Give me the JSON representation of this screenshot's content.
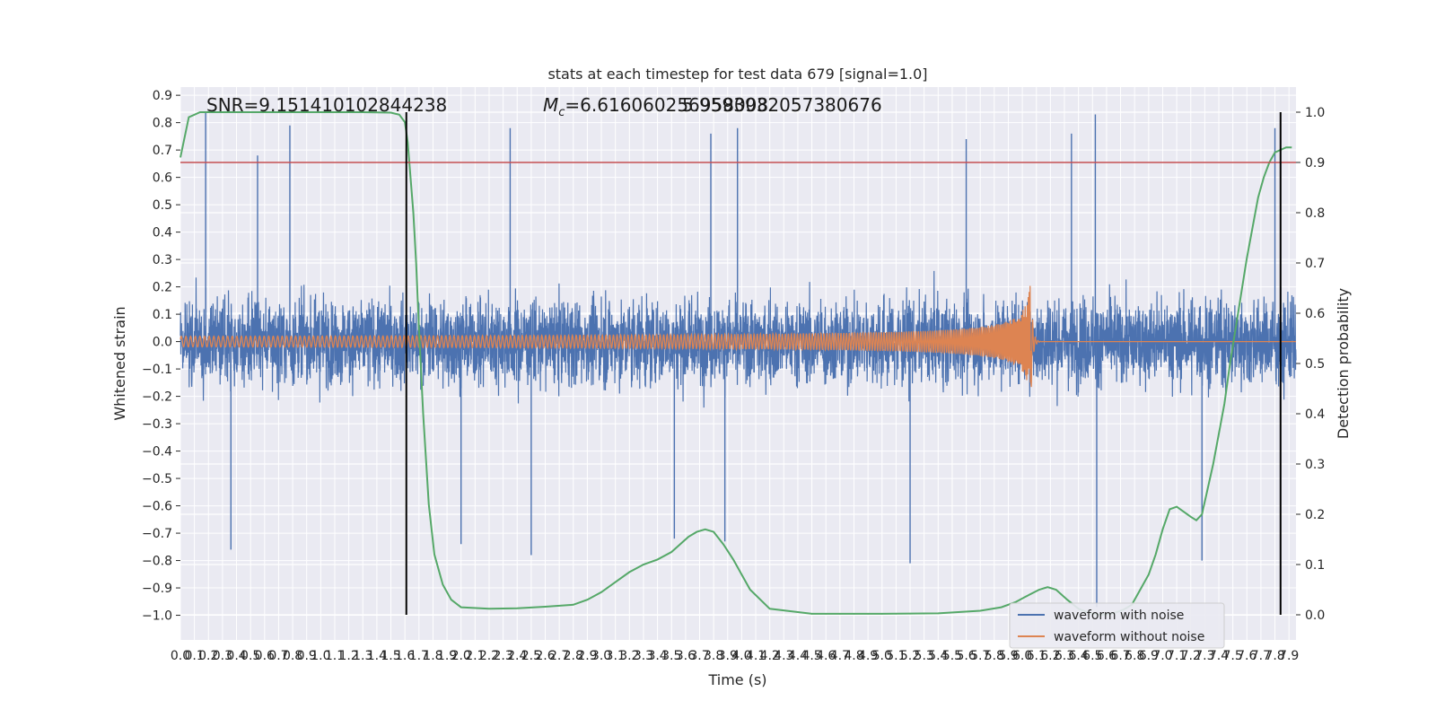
{
  "chart_data": {
    "type": "line",
    "title": "stats at each timestep for test data 679 [signal=1.0]",
    "xlabel": "Time (s)",
    "ylabel_left": "Whitened strain",
    "ylabel_right": "Detection probability",
    "xlim": [
      0.0,
      7.95
    ],
    "ylim_left": [
      -1.09,
      0.93
    ],
    "ylim_right": [
      -0.05,
      1.05
    ],
    "x_ticks": [
      0.0,
      0.1,
      0.2,
      0.3,
      0.4,
      0.5,
      0.6,
      0.7,
      0.8,
      0.9,
      1.0,
      1.1,
      1.2,
      1.3,
      1.4,
      1.5,
      1.6,
      1.7,
      1.8,
      1.9,
      2.0,
      2.1,
      2.2,
      2.3,
      2.4,
      2.5,
      2.6,
      2.7,
      2.8,
      2.9,
      3.0,
      3.1,
      3.2,
      3.3,
      3.4,
      3.5,
      3.6,
      3.7,
      3.8,
      3.9,
      4.0,
      4.1,
      4.2,
      4.3,
      4.4,
      4.5,
      4.6,
      4.7,
      4.8,
      4.9,
      5.0,
      5.1,
      5.2,
      5.3,
      5.4,
      5.5,
      5.6,
      5.7,
      5.8,
      5.9,
      6.0,
      6.1,
      6.2,
      6.3,
      6.4,
      6.5,
      6.6,
      6.7,
      6.8,
      6.9,
      7.0,
      7.1,
      7.2,
      7.3,
      7.4,
      7.5,
      7.6,
      7.7,
      7.8,
      7.9
    ],
    "x_tick_labels": [
      "0.0",
      "0.1",
      "0.2",
      "0.3",
      "0.4",
      "0.5",
      "0.6",
      "0.7",
      "0.8",
      "0.9",
      "1.0",
      "1.1",
      "1.2",
      "1.3",
      "1.4",
      "1.5",
      "1.6",
      "1.7",
      "1.8",
      "1.9",
      "2.0",
      "2.1",
      "2.2",
      "2.3",
      "2.4",
      "2.5",
      "2.6",
      "2.7",
      "2.8",
      "2.9",
      "3.0",
      "3.1",
      "3.2",
      "3.3",
      "3.4",
      "3.5",
      "3.6",
      "3.7",
      "3.8",
      "3.9",
      "4.0",
      "4.1",
      "4.2",
      "4.3",
      "4.4",
      "4.5",
      "4.6",
      "4.7",
      "4.8",
      "4.9",
      "5.0",
      "5.1",
      "5.2",
      "5.3",
      "5.4",
      "5.5",
      "5.6",
      "5.7",
      "5.8",
      "5.9",
      "6.0",
      "6.1",
      "6.2",
      "6.3",
      "6.4",
      "6.5",
      "6.6",
      "6.7",
      "6.8",
      "6.9",
      "7.0",
      "7.1",
      "7.2",
      "7.3",
      "7.4",
      "7.5",
      "7.6",
      "7.7",
      "7.8",
      "7.9"
    ],
    "y_left_ticks": [
      0.9,
      0.8,
      0.7,
      0.6,
      0.5,
      0.4,
      0.3,
      0.2,
      0.1,
      0.0,
      -0.1,
      -0.2,
      -0.3,
      -0.4,
      -0.5,
      -0.6,
      -0.7,
      -0.8,
      -0.9,
      -1.0
    ],
    "y_left_tick_labels": [
      "0.9",
      "0.8",
      "0.7",
      "0.6",
      "0.5",
      "0.4",
      "0.3",
      "0.2",
      "0.1",
      "0.0",
      "−0.1",
      "−0.2",
      "−0.3",
      "−0.4",
      "−0.5",
      "−0.6",
      "−0.7",
      "−0.8",
      "−0.9",
      "−1.0"
    ],
    "y_right_ticks": [
      1.0,
      0.9,
      0.8,
      0.7,
      0.6,
      0.5,
      0.4,
      0.3,
      0.2,
      0.1,
      0.0
    ],
    "y_right_tick_labels": [
      "1.0",
      "0.9",
      "0.8",
      "0.7",
      "0.6",
      "0.5",
      "0.4",
      "0.3",
      "0.2",
      "0.1",
      "0.0"
    ],
    "grid": true,
    "legend_position": "bottom-right",
    "annotations": {
      "snr": "SNR=9.151410102844238",
      "chirp_mass_symbol": "M",
      "chirp_mass_sub": "c",
      "chirp_mass_value": "=6.616060256958008",
      "overlap_value": "5.9593932057380676"
    },
    "threshold": {
      "value": 0.9,
      "axis": "right"
    },
    "vertical_markers": [
      1.61,
      7.84
    ],
    "series": [
      {
        "name": "waveform with noise",
        "axis": "left",
        "kind": "noise",
        "typical_amplitude": 0.32,
        "peaks": [
          {
            "x": 0.18,
            "y": 0.84
          },
          {
            "x": 0.36,
            "y": -0.76
          },
          {
            "x": 0.55,
            "y": 0.68
          },
          {
            "x": 0.78,
            "y": 0.79
          },
          {
            "x": 2.35,
            "y": 0.78
          },
          {
            "x": 3.52,
            "y": -0.72
          },
          {
            "x": 3.78,
            "y": 0.76
          },
          {
            "x": 3.97,
            "y": 0.78
          },
          {
            "x": 3.88,
            "y": -0.73
          },
          {
            "x": 5.2,
            "y": -0.81
          },
          {
            "x": 5.6,
            "y": 0.74
          },
          {
            "x": 6.35,
            "y": 0.76
          },
          {
            "x": 6.52,
            "y": 0.83
          },
          {
            "x": 6.53,
            "y": -0.97
          },
          {
            "x": 7.8,
            "y": 0.78
          },
          {
            "x": 7.28,
            "y": -0.8
          },
          {
            "x": 2.0,
            "y": -0.74
          },
          {
            "x": 2.5,
            "y": -0.78
          }
        ]
      },
      {
        "name": "waveform without noise",
        "axis": "left",
        "kind": "chirp",
        "start_amplitude": 0.01,
        "merger_time": 6.06,
        "merger_amplitude": 0.23,
        "start_frequency": 30
      },
      {
        "name": "detection probability",
        "axis": "right",
        "kind": "line",
        "x": [
          0.0,
          0.06,
          0.14,
          0.3,
          0.6,
          1.0,
          1.3,
          1.5,
          1.56,
          1.6,
          1.62,
          1.64,
          1.66,
          1.68,
          1.7,
          1.73,
          1.77,
          1.81,
          1.87,
          1.93,
          2.0,
          2.2,
          2.4,
          2.6,
          2.8,
          2.9,
          3.0,
          3.1,
          3.2,
          3.3,
          3.4,
          3.5,
          3.56,
          3.62,
          3.68,
          3.74,
          3.8,
          3.87,
          3.94,
          4.0,
          4.06,
          4.2,
          4.5,
          5.0,
          5.4,
          5.7,
          5.85,
          5.95,
          6.05,
          6.12,
          6.18,
          6.24,
          6.32,
          6.4,
          6.48,
          6.56,
          6.64,
          6.72,
          6.78,
          6.84,
          6.9,
          6.95,
          7.0,
          7.05,
          7.1,
          7.15,
          7.2,
          7.24,
          7.28,
          7.32,
          7.36,
          7.4,
          7.44,
          7.48,
          7.52,
          7.56,
          7.6,
          7.64,
          7.68,
          7.72,
          7.76,
          7.8,
          7.84,
          7.88,
          7.92
        ],
        "y": [
          0.91,
          0.99,
          1.0,
          1.0,
          1.0,
          1.0,
          1.0,
          0.999,
          0.995,
          0.98,
          0.94,
          0.87,
          0.8,
          0.7,
          0.57,
          0.4,
          0.22,
          0.12,
          0.06,
          0.03,
          0.015,
          0.012,
          0.013,
          0.016,
          0.02,
          0.03,
          0.045,
          0.065,
          0.085,
          0.1,
          0.11,
          0.125,
          0.14,
          0.155,
          0.165,
          0.17,
          0.165,
          0.14,
          0.11,
          0.08,
          0.05,
          0.012,
          0.002,
          0.002,
          0.003,
          0.008,
          0.015,
          0.025,
          0.04,
          0.05,
          0.055,
          0.05,
          0.03,
          0.012,
          0.003,
          0.0,
          0.002,
          0.01,
          0.02,
          0.05,
          0.08,
          0.12,
          0.17,
          0.21,
          0.215,
          0.205,
          0.195,
          0.188,
          0.2,
          0.25,
          0.3,
          0.36,
          0.42,
          0.5,
          0.57,
          0.64,
          0.71,
          0.77,
          0.83,
          0.87,
          0.9,
          0.92,
          0.925,
          0.93,
          0.93
        ]
      }
    ],
    "legend": [
      {
        "label": "waveform with noise",
        "color": "#4c72b0"
      },
      {
        "label": "waveform without noise",
        "color": "#dd8452"
      }
    ],
    "colors": {
      "plot_background": "#eaeaf2",
      "grid": "#ffffff",
      "noise": "#4c72b0",
      "chirp": "#dd8452",
      "probability": "#55a868",
      "threshold": "#c44e52",
      "marker": "#000000"
    }
  }
}
